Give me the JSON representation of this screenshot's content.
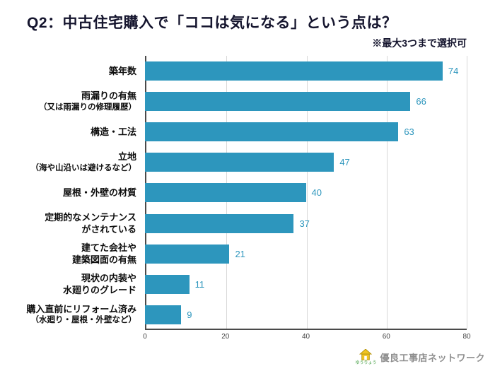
{
  "title": "Q2：中古住宅購入で「ココは気になる」という点は？",
  "subtitle": "※最大3つまで選択可",
  "chart_data": {
    "type": "bar",
    "orientation": "horizontal",
    "title": "Q2：中古住宅購入で「ココは気になる」という点は？",
    "note": "※最大3つまで選択可",
    "categories": [
      [
        "築年数"
      ],
      [
        "雨漏りの有無",
        "（又は雨漏りの修理履歴）"
      ],
      [
        "構造・工法"
      ],
      [
        "立地",
        "（海や山沿いは避けるなど）"
      ],
      [
        "屋根・外壁の材質"
      ],
      [
        "定期的なメンテナンス",
        "がされている"
      ],
      [
        "建てた会社や",
        "建築図面の有無"
      ],
      [
        "現状の内装や",
        "水廻りのグレード"
      ],
      [
        "購入直前にリフォーム済み",
        "（水廻り・屋根・外壁など）"
      ]
    ],
    "values": [
      74,
      66,
      63,
      47,
      40,
      37,
      21,
      11,
      9
    ],
    "xlim": [
      0,
      80
    ],
    "xticks": [
      0,
      20,
      40,
      60,
      80
    ],
    "bar_color": "#2d96bd",
    "grid": true,
    "legend": false
  },
  "footer": {
    "logo_text": "優良工事店ネットワーク",
    "logo_reading": "ゆうりょう"
  }
}
